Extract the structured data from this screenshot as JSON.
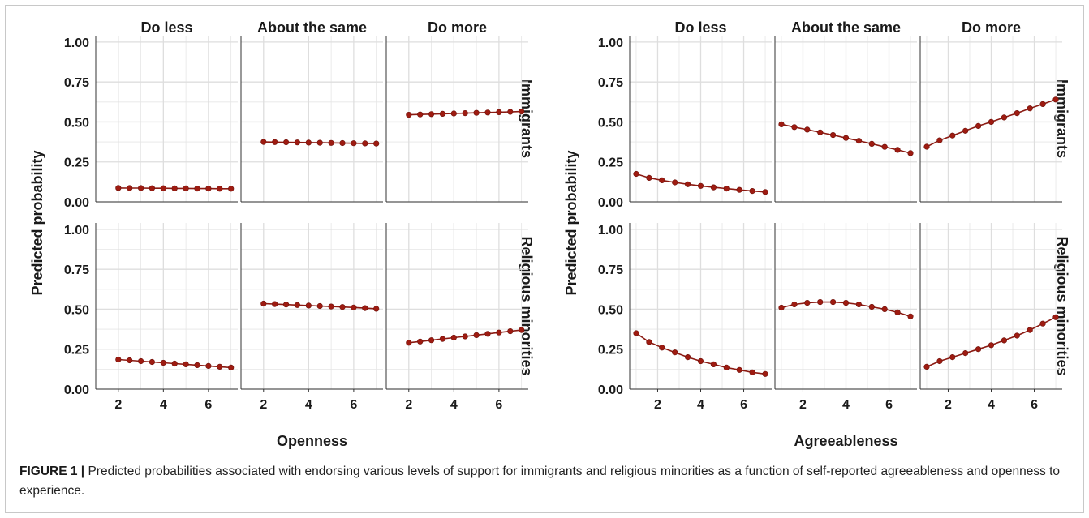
{
  "chart_data": [
    {
      "type": "line",
      "xlabel": "Openness",
      "ylabel": "Predicted probability",
      "xlim": [
        1.0,
        7.3
      ],
      "ylim": [
        0,
        1.04
      ],
      "xticks": [
        2,
        4,
        6
      ],
      "yticks": [
        "0.00",
        "0.25",
        "0.50",
        "0.75",
        "1.00"
      ],
      "grid": true,
      "columns": [
        "Do less",
        "About the same",
        "Do more"
      ],
      "rows": [
        "Immigrants",
        "Religious minorities"
      ],
      "x": [
        2.0,
        2.5,
        3.0,
        3.5,
        4.0,
        4.5,
        5.0,
        5.5,
        6.0,
        6.5,
        7.0
      ],
      "panels": [
        {
          "row": "Immigrants",
          "column": "Do less",
          "values": [
            0.087,
            0.086,
            0.086,
            0.085,
            0.085,
            0.084,
            0.084,
            0.083,
            0.083,
            0.082,
            0.082
          ]
        },
        {
          "row": "Immigrants",
          "column": "About the same",
          "values": [
            0.375,
            0.374,
            0.373,
            0.372,
            0.371,
            0.37,
            0.369,
            0.368,
            0.367,
            0.366,
            0.365
          ]
        },
        {
          "row": "Immigrants",
          "column": "Do more",
          "values": [
            0.545,
            0.547,
            0.549,
            0.551,
            0.553,
            0.555,
            0.557,
            0.559,
            0.561,
            0.563,
            0.565
          ]
        },
        {
          "row": "Religious minorities",
          "column": "Do less",
          "values": [
            0.185,
            0.18,
            0.175,
            0.17,
            0.165,
            0.16,
            0.155,
            0.15,
            0.145,
            0.14,
            0.135
          ]
        },
        {
          "row": "Religious minorities",
          "column": "About the same",
          "values": [
            0.535,
            0.532,
            0.529,
            0.526,
            0.523,
            0.52,
            0.517,
            0.514,
            0.511,
            0.507,
            0.503
          ]
        },
        {
          "row": "Religious minorities",
          "column": "Do more",
          "values": [
            0.29,
            0.298,
            0.306,
            0.314,
            0.322,
            0.33,
            0.338,
            0.346,
            0.354,
            0.362,
            0.37
          ]
        }
      ]
    },
    {
      "type": "line",
      "xlabel": "Agreeableness",
      "ylabel": "Predicted probability",
      "xlim": [
        0.7,
        7.3
      ],
      "ylim": [
        0,
        1.04
      ],
      "xticks": [
        2,
        4,
        6
      ],
      "yticks": [
        "0.00",
        "0.25",
        "0.50",
        "0.75",
        "1.00"
      ],
      "grid": true,
      "columns": [
        "Do less",
        "About the same",
        "Do more"
      ],
      "rows": [
        "Immigrants",
        "Religious minorities"
      ],
      "x": [
        1.0,
        1.6,
        2.2,
        2.8,
        3.4,
        4.0,
        4.6,
        5.2,
        5.8,
        6.4,
        7.0
      ],
      "panels": [
        {
          "row": "Immigrants",
          "column": "Do less",
          "values": [
            0.175,
            0.15,
            0.135,
            0.122,
            0.11,
            0.1,
            0.091,
            0.083,
            0.075,
            0.068,
            0.062
          ]
        },
        {
          "row": "Immigrants",
          "column": "About the same",
          "values": [
            0.485,
            0.468,
            0.452,
            0.435,
            0.418,
            0.4,
            0.382,
            0.363,
            0.344,
            0.325,
            0.305
          ]
        },
        {
          "row": "Immigrants",
          "column": "Do more",
          "values": [
            0.345,
            0.385,
            0.415,
            0.445,
            0.475,
            0.5,
            0.528,
            0.555,
            0.585,
            0.612,
            0.64
          ]
        },
        {
          "row": "Religious minorities",
          "column": "Do less",
          "values": [
            0.35,
            0.295,
            0.26,
            0.23,
            0.2,
            0.175,
            0.155,
            0.135,
            0.12,
            0.105,
            0.095
          ]
        },
        {
          "row": "Religious minorities",
          "column": "About the same",
          "values": [
            0.51,
            0.53,
            0.54,
            0.545,
            0.545,
            0.54,
            0.53,
            0.515,
            0.5,
            0.48,
            0.455
          ]
        },
        {
          "row": "Religious minorities",
          "column": "Do more",
          "values": [
            0.14,
            0.175,
            0.2,
            0.225,
            0.25,
            0.275,
            0.305,
            0.335,
            0.37,
            0.41,
            0.45
          ]
        }
      ]
    }
  ],
  "style": {
    "line_color": "#8b1a12",
    "point_color": "#9e1b11",
    "grid_color": "#e6e6e6",
    "axis_color": "#333333",
    "text_color": "#1a1a1a"
  },
  "caption": {
    "label": "FIGURE 1 |",
    "text": "Predicted probabilities associated with endorsing various levels of support for immigrants and religious minorities as a function of self-reported agreeableness and openness to experience."
  }
}
